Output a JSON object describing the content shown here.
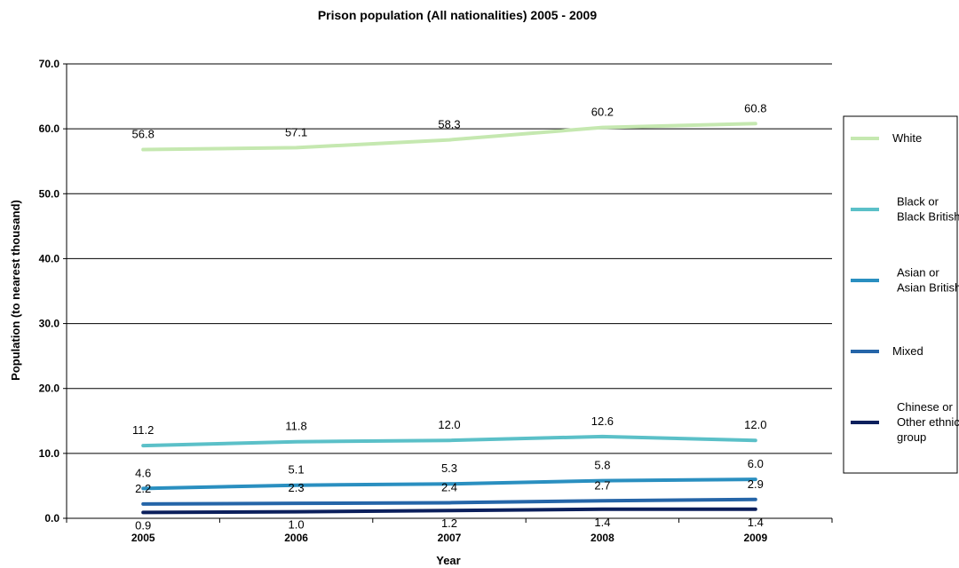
{
  "chart_data": {
    "type": "line",
    "title": "Prison population (All nationalities) 2005 - 2009",
    "xlabel": "Year",
    "ylabel": "Population (to nearest thousand)",
    "ylim": [
      0,
      70
    ],
    "yticks": [
      "0.0",
      "10.0",
      "20.0",
      "30.0",
      "40.0",
      "50.0",
      "60.0",
      "70.0"
    ],
    "categories": [
      "2005",
      "2006",
      "2007",
      "2008",
      "2009"
    ],
    "grid": true,
    "legend_position": "right",
    "series": [
      {
        "name": "White",
        "legend_lines": [
          "White"
        ],
        "color": "#c5e8b0",
        "values": [
          56.8,
          57.1,
          58.3,
          60.2,
          60.8
        ],
        "labels": [
          "56.8",
          "57.1",
          "58.3",
          "60.2",
          "60.8"
        ]
      },
      {
        "name": "Black or Black British",
        "legend_lines": [
          "Black or",
          "Black British"
        ],
        "color": "#5bc0c8",
        "values": [
          11.2,
          11.8,
          12.0,
          12.6,
          12.0
        ],
        "labels": [
          "11.2",
          "11.8",
          "12.0",
          "12.6",
          "12.0"
        ]
      },
      {
        "name": "Asian or Asian British",
        "legend_lines": [
          "Asian or",
          "Asian British"
        ],
        "color": "#2a8fc0",
        "values": [
          4.6,
          5.1,
          5.3,
          5.8,
          6.0
        ],
        "labels": [
          "4.6",
          "5.1",
          "5.3",
          "5.8",
          "6.0"
        ]
      },
      {
        "name": "Mixed",
        "legend_lines": [
          "Mixed"
        ],
        "color": "#2565a8",
        "values": [
          2.2,
          2.3,
          2.4,
          2.7,
          2.9
        ],
        "labels": [
          "2.2",
          "2.3",
          "2.4",
          "2.7",
          "2.9"
        ]
      },
      {
        "name": "Chinese or Other ethnic group",
        "legend_lines": [
          "Chinese or",
          "Other ethnic",
          "group"
        ],
        "color": "#0b1f5c",
        "values": [
          0.9,
          1.0,
          1.2,
          1.4,
          1.4
        ],
        "labels": [
          "0.9",
          "1.0",
          "1.2",
          "1.4",
          "1.4"
        ]
      }
    ]
  }
}
